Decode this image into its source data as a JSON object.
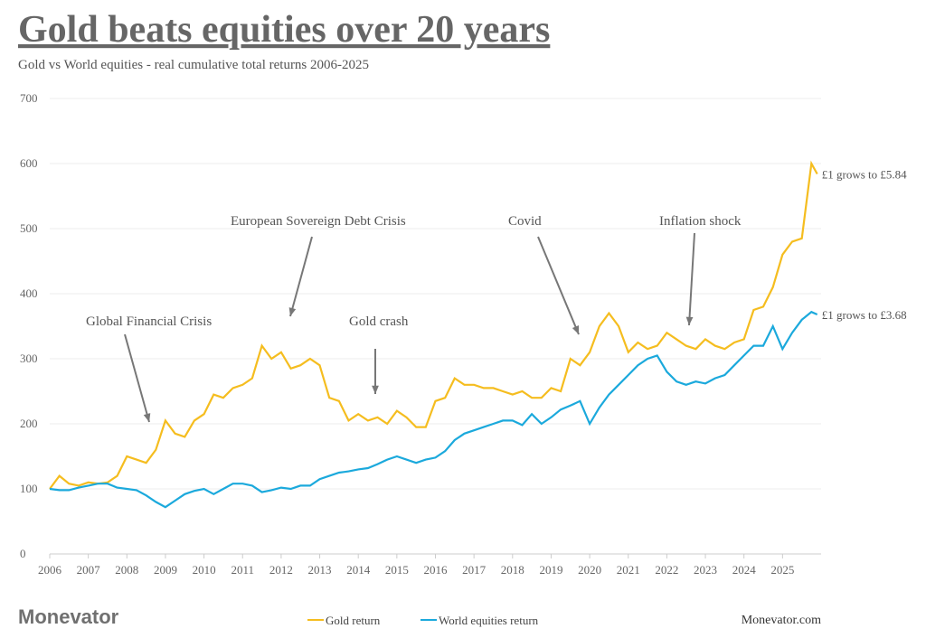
{
  "chart_data": {
    "type": "line",
    "title": "Gold beats equities over 20 years",
    "subtitle": "Gold vs World equities - real cumulative total returns 2006-2025",
    "brand": "Monevator",
    "source": "Monevator.com",
    "x": [
      2006,
      2006.25,
      2006.5,
      2006.75,
      2007,
      2007.25,
      2007.5,
      2007.75,
      2008,
      2008.25,
      2008.5,
      2008.75,
      2009,
      2009.25,
      2009.5,
      2009.75,
      2010,
      2010.25,
      2010.5,
      2010.75,
      2011,
      2011.25,
      2011.5,
      2011.75,
      2012,
      2012.25,
      2012.5,
      2012.75,
      2013,
      2013.25,
      2013.5,
      2013.75,
      2014,
      2014.25,
      2014.5,
      2014.75,
      2015,
      2015.25,
      2015.5,
      2015.75,
      2016,
      2016.25,
      2016.5,
      2016.75,
      2017,
      2017.25,
      2017.5,
      2017.75,
      2018,
      2018.25,
      2018.5,
      2018.75,
      2019,
      2019.25,
      2019.5,
      2019.75,
      2020,
      2020.25,
      2020.5,
      2020.75,
      2021,
      2021.25,
      2021.5,
      2021.75,
      2022,
      2022.25,
      2022.5,
      2022.75,
      2023,
      2023.25,
      2023.5,
      2023.75,
      2024,
      2024.25,
      2024.5,
      2024.75,
      2025,
      2025.25,
      2025.5,
      2025.75,
      2025.9
    ],
    "series": [
      {
        "name": "Gold return",
        "color": "#f5bd1f",
        "values": [
          100,
          120,
          108,
          105,
          110,
          108,
          110,
          120,
          150,
          145,
          140,
          160,
          205,
          185,
          180,
          205,
          215,
          245,
          240,
          255,
          260,
          270,
          320,
          300,
          310,
          285,
          290,
          300,
          290,
          240,
          235,
          205,
          215,
          205,
          210,
          200,
          220,
          210,
          195,
          195,
          235,
          240,
          270,
          260,
          260,
          255,
          255,
          250,
          245,
          250,
          240,
          240,
          255,
          250,
          300,
          290,
          310,
          350,
          370,
          350,
          310,
          325,
          315,
          320,
          340,
          330,
          320,
          315,
          330,
          320,
          315,
          325,
          330,
          375,
          380,
          410,
          460,
          480,
          485,
          600,
          584
        ]
      },
      {
        "name": "World equities return",
        "color": "#1ba9dc",
        "values": [
          100,
          98,
          98,
          102,
          105,
          108,
          108,
          102,
          100,
          98,
          90,
          80,
          72,
          82,
          92,
          97,
          100,
          92,
          100,
          108,
          108,
          105,
          95,
          98,
          102,
          100,
          105,
          105,
          115,
          120,
          125,
          127,
          130,
          132,
          138,
          145,
          150,
          145,
          140,
          145,
          148,
          158,
          175,
          185,
          190,
          195,
          200,
          205,
          205,
          198,
          215,
          200,
          210,
          222,
          228,
          235,
          200,
          225,
          245,
          260,
          275,
          290,
          300,
          305,
          280,
          265,
          260,
          265,
          262,
          270,
          275,
          290,
          305,
          320,
          320,
          350,
          315,
          340,
          360,
          372,
          368
        ]
      }
    ],
    "end_labels": [
      "£1 grows to £5.84",
      "£1 grows to £3.68"
    ],
    "annotations": [
      "Global Financial Crisis",
      "European Sovereign Debt Crisis",
      "Gold crash",
      "Covid",
      "Inflation shock"
    ],
    "xlim": [
      2006,
      2026
    ],
    "xticks": [
      2006,
      2007,
      2008,
      2009,
      2010,
      2011,
      2012,
      2013,
      2014,
      2015,
      2016,
      2017,
      2018,
      2019,
      2020,
      2021,
      2022,
      2023,
      2024,
      2025
    ],
    "ylim": [
      0,
      700
    ],
    "yticks": [
      0,
      100,
      200,
      300,
      400,
      500,
      600,
      700
    ],
    "grid": true
  }
}
